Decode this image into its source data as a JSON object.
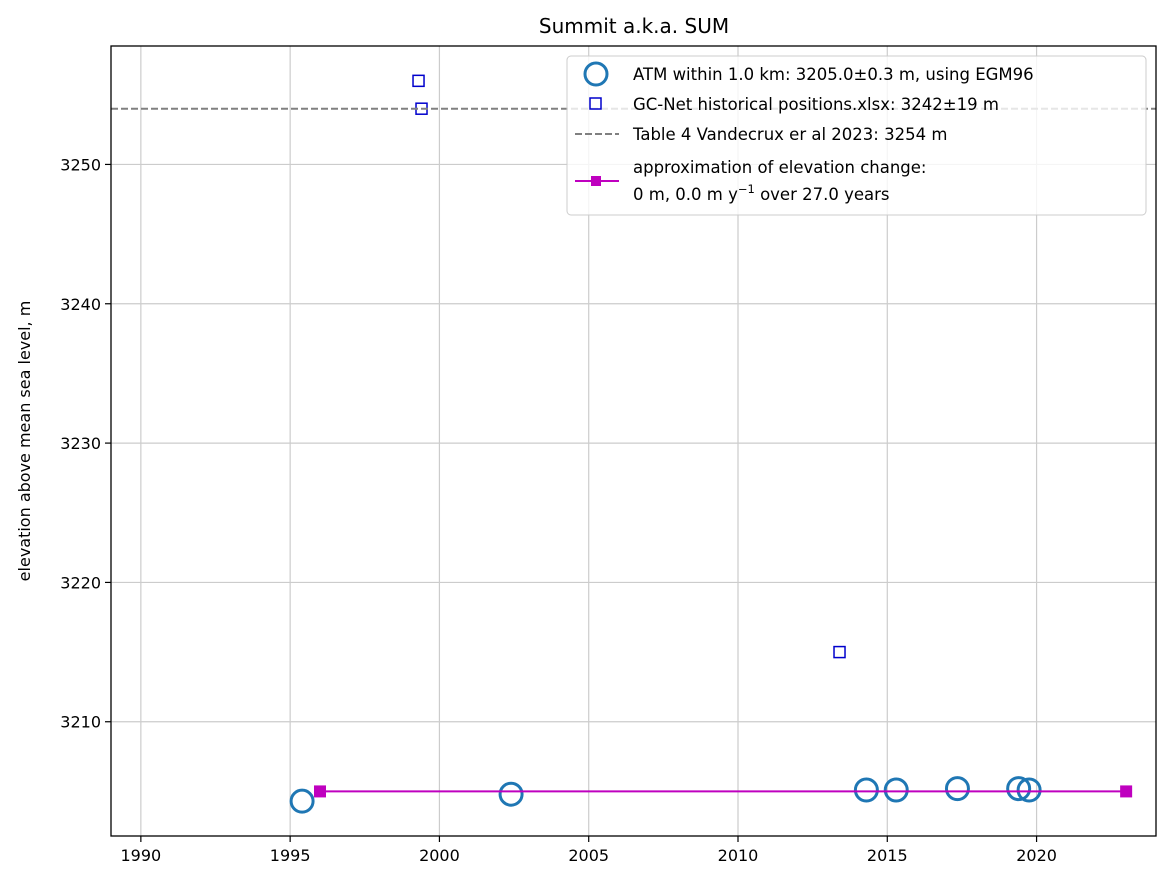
{
  "chart_data": {
    "type": "scatter",
    "title": "Summit a.k.a. SUM",
    "xlabel": "",
    "ylabel": "elevation above mean sea level, m",
    "xlim": [
      1989,
      2024
    ],
    "ylim": [
      3201.8,
      3258.5
    ],
    "xticks": [
      1990,
      1995,
      2000,
      2005,
      2010,
      2015,
      2020
    ],
    "yticks": [
      3210,
      3220,
      3230,
      3240,
      3250
    ],
    "grid": true,
    "legend_position": "top-right",
    "series": [
      {
        "name": "ATM within 1.0 km: 3205.0±0.3 m, using EGM96",
        "marker": "circle-open",
        "color": "#1f77b4",
        "x": [
          1995.4,
          2002.4,
          2014.3,
          2015.3,
          2017.35,
          2019.4,
          2019.75
        ],
        "y": [
          3204.3,
          3204.8,
          3205.1,
          3205.1,
          3205.2,
          3205.2,
          3205.1
        ]
      },
      {
        "name": "GC-Net historical positions.xlsx: 3242±19 m",
        "marker": "square-open",
        "color": "#0000cc",
        "x": [
          1999.3,
          1999.4,
          2013.4
        ],
        "y": [
          3256.0,
          3254.0,
          3215.0
        ]
      },
      {
        "name": "Table 4 Vandecrux er al 2023: 3254 m",
        "marker": "dashed-line",
        "color": "#808080",
        "y": 3254
      },
      {
        "name_line1": "approximation of elevation change:",
        "name_line2_prefix": "0 m, 0.0 m y",
        "name_line2_sup": "−1",
        "name_line2_suffix": " over 27.0 years",
        "marker": "line-square",
        "color": "#bf00bf",
        "x": [
          1996.0,
          2023.0
        ],
        "y": [
          3205.0,
          3205.0
        ]
      }
    ]
  }
}
